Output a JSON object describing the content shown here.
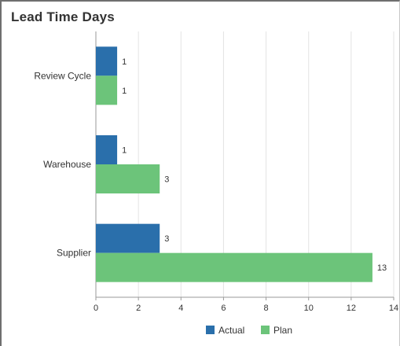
{
  "chart_data": {
    "type": "bar",
    "orientation": "horizontal",
    "title": "Lead Time Days",
    "categories": [
      "Review Cycle",
      "Warehouse",
      "Supplier"
    ],
    "series": [
      {
        "name": "Actual",
        "values": [
          1,
          1,
          3
        ],
        "color": "#2a6fab"
      },
      {
        "name": "Plan",
        "values": [
          1,
          3,
          13
        ],
        "color": "#6cc47a"
      }
    ],
    "xlim": [
      0,
      14
    ],
    "xticks": [
      0,
      2,
      4,
      6,
      8,
      10,
      12,
      14
    ],
    "xlabel": "",
    "ylabel": "",
    "grid": true,
    "legend": "bottom-center",
    "data_labels": true
  }
}
